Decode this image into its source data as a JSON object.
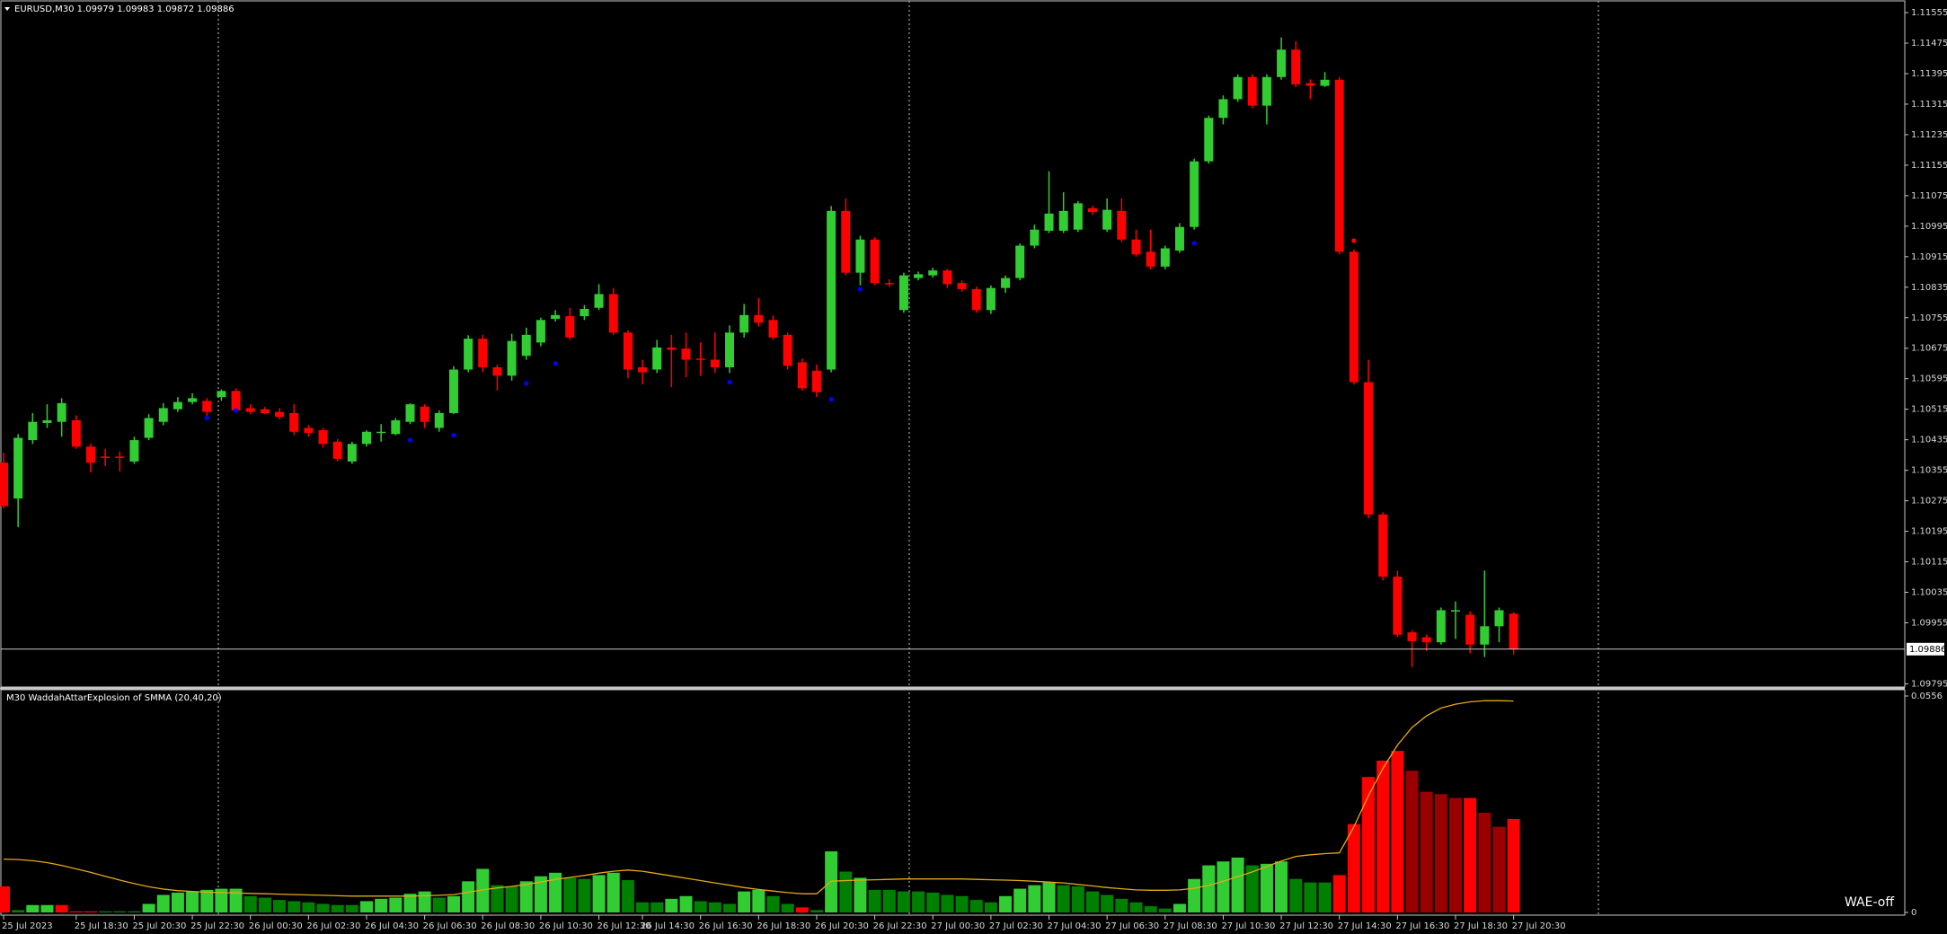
{
  "chart_data": [
    {
      "type": "candlestick",
      "title": "EURUSD,M30 1.09979 1.09983 1.09872 1.09886",
      "categories": [
        "25 Jul 2023",
        null,
        null,
        null,
        null,
        "25 Jul 18:30",
        null,
        null,
        null,
        "25 Jul 20:30",
        null,
        null,
        null,
        "25 Jul 22:30",
        null,
        null,
        null,
        "26 Jul 00:30",
        null,
        null,
        null,
        "26 Jul 02:30",
        null,
        null,
        null,
        "26 Jul 04:30",
        null,
        null,
        null,
        "26 Jul 06:30",
        null,
        null,
        null,
        "26 Jul 08:30",
        null,
        null,
        null,
        "26 Jul 10:30",
        null,
        null,
        null,
        "26 Jul 12:30",
        null,
        null,
        "26 Jul 14:30",
        null,
        null,
        null,
        "26 Jul 16:30",
        null,
        null,
        null,
        "26 Jul 18:30",
        null,
        null,
        null,
        "26 Jul 20:30",
        null,
        null,
        null,
        "26 Jul 22:30",
        null,
        null,
        null,
        "27 Jul 00:30",
        null,
        null,
        null,
        "27 Jul 02:30",
        null,
        null,
        null,
        "27 Jul 04:30",
        null,
        null,
        null,
        "27 Jul 06:30",
        null,
        null,
        null,
        "27 Jul 08:30",
        null,
        null,
        null,
        "27 Jul 10:30",
        null,
        null,
        null,
        "27 Jul 12:30",
        null,
        null,
        null,
        "27 Jul 14:30",
        null,
        null,
        null,
        "27 Jul 16:30",
        null,
        null,
        null,
        "27 Jul 18:30",
        null,
        null,
        null,
        "27 Jul 20:30"
      ],
      "open": [
        1.10375,
        1.10281,
        1.10434,
        1.10479,
        1.10482,
        1.10486,
        1.10417,
        1.10391,
        1.10391,
        1.10378,
        1.1044,
        1.10482,
        1.10515,
        1.10534,
        1.10537,
        1.10547,
        1.10563,
        1.10518,
        1.10515,
        1.10508,
        1.10505,
        1.10466,
        1.1046,
        1.1043,
        1.10378,
        1.10424,
        1.10453,
        1.1045,
        1.10482,
        1.10522,
        1.10466,
        1.10505,
        1.10619,
        1.107,
        1.10625,
        1.10603,
        1.10655,
        1.1069,
        1.10752,
        1.10759,
        1.10759,
        1.10781,
        1.10817,
        1.10716,
        1.10625,
        1.10619,
        1.10677,
        1.10674,
        1.10648,
        1.10645,
        1.10625,
        1.10716,
        1.10762,
        1.10749,
        1.1071,
        1.10638,
        1.10616,
        1.10619,
        1.11035,
        1.10873,
        1.1096,
        1.10846,
        1.10775,
        1.10859,
        1.10866,
        1.10879,
        1.10846,
        1.1083,
        1.10775,
        1.10833,
        1.10859,
        1.10944,
        1.10983,
        1.10983,
        1.10986,
        1.11042,
        1.10986,
        1.11035,
        1.1096,
        1.10928,
        1.10889,
        1.10931,
        1.10993,
        1.11165,
        1.11279,
        1.11328,
        1.11386,
        1.11311,
        1.11386,
        1.11458,
        1.1137,
        1.11363,
        1.11379,
        1.10928,
        1.10586,
        1.10239,
        1.10076,
        1.0993,
        1.09917,
        1.09904,
        1.09985,
        1.09976,
        1.09898,
        1.09946,
        1.09979
      ],
      "high": [
        1.10401,
        1.1045,
        1.10505,
        1.10528,
        1.10544,
        1.10499,
        1.10424,
        1.10411,
        1.10404,
        1.10443,
        1.10502,
        1.10531,
        1.10547,
        1.10557,
        1.10544,
        1.10567,
        1.1057,
        1.10528,
        1.10521,
        1.10518,
        1.10528,
        1.10473,
        1.10466,
        1.10437,
        1.1043,
        1.1046,
        1.10476,
        1.10492,
        1.10531,
        1.10528,
        1.10512,
        1.10628,
        1.10709,
        1.1071,
        1.10632,
        1.10713,
        1.10729,
        1.10755,
        1.10775,
        1.10781,
        1.10788,
        1.10843,
        1.10833,
        1.10722,
        1.10645,
        1.10697,
        1.1071,
        1.10716,
        1.1069,
        1.10716,
        1.10735,
        1.10791,
        1.10807,
        1.10762,
        1.10716,
        1.10648,
        1.10632,
        1.11048,
        1.11068,
        1.1097,
        1.10966,
        1.10856,
        1.10873,
        1.10876,
        1.10886,
        1.10883,
        1.10853,
        1.10836,
        1.1084,
        1.10866,
        1.1095,
        1.10999,
        1.11139,
        1.11084,
        1.11061,
        1.11048,
        1.11068,
        1.11068,
        1.10986,
        1.10986,
        1.10944,
        1.11003,
        1.11172,
        1.11285,
        1.11338,
        1.11393,
        1.11393,
        1.11393,
        1.1149,
        1.1148,
        1.1138,
        1.11399,
        1.11386,
        1.10934,
        1.10645,
        1.10245,
        1.10092,
        1.09936,
        1.09924,
        1.09995,
        1.10011,
        1.09985,
        1.10092,
        1.09995,
        1.09983
      ],
      "low": [
        1.10255,
        1.10206,
        1.10424,
        1.10466,
        1.10443,
        1.10411,
        1.10349,
        1.10366,
        1.10352,
        1.10372,
        1.10434,
        1.10473,
        1.10508,
        1.10528,
        1.10498,
        1.10537,
        1.10508,
        1.10502,
        1.10502,
        1.10489,
        1.10447,
        1.10443,
        1.10414,
        1.10378,
        1.10372,
        1.10417,
        1.1043,
        1.10447,
        1.10476,
        1.10466,
        1.10456,
        1.10502,
        1.10612,
        1.10612,
        1.10564,
        1.1059,
        1.10645,
        1.1068,
        1.10745,
        1.10697,
        1.10749,
        1.10775,
        1.1071,
        1.10596,
        1.1058,
        1.1061,
        1.10573,
        1.10599,
        1.10603,
        1.1061,
        1.1061,
        1.10703,
        1.10732,
        1.10697,
        1.10619,
        1.10564,
        1.10547,
        1.10612,
        1.10866,
        1.1084,
        1.1084,
        1.10836,
        1.10768,
        1.10853,
        1.1086,
        1.10833,
        1.10823,
        1.10768,
        1.10765,
        1.1082,
        1.10853,
        1.10937,
        1.10977,
        1.10977,
        1.1098,
        1.11025,
        1.1098,
        1.10953,
        1.10915,
        1.10882,
        1.10882,
        1.10925,
        1.10986,
        1.11159,
        1.11262,
        1.11321,
        1.11305,
        1.11262,
        1.11379,
        1.1136,
        1.11328,
        1.1136,
        1.10921,
        1.1058,
        1.10229,
        1.10066,
        1.09918,
        1.09839,
        1.09881,
        1.09898,
        1.09913,
        1.09875,
        1.09865,
        1.09904,
        1.09872
      ],
      "close": [
        1.10261,
        1.1044,
        1.10482,
        1.10486,
        1.10531,
        1.10417,
        1.10375,
        1.10388,
        1.10388,
        1.10434,
        1.10492,
        1.10518,
        1.10534,
        1.10544,
        1.10508,
        1.10563,
        1.10512,
        1.10508,
        1.10505,
        1.10495,
        1.10456,
        1.10453,
        1.10424,
        1.10385,
        1.10424,
        1.10456,
        1.10456,
        1.10486,
        1.10528,
        1.10482,
        1.10505,
        1.10619,
        1.107,
        1.10625,
        1.10603,
        1.10694,
        1.1071,
        1.10749,
        1.10762,
        1.10703,
        1.10778,
        1.10817,
        1.10716,
        1.10619,
        1.10612,
        1.10677,
        1.10671,
        1.10645,
        1.10645,
        1.10625,
        1.10716,
        1.10762,
        1.10742,
        1.10703,
        1.10629,
        1.1057,
        1.1056,
        1.11035,
        1.10873,
        1.1096,
        1.10846,
        1.10843,
        1.10866,
        1.10869,
        1.10879,
        1.10843,
        1.1083,
        1.10775,
        1.10833,
        1.10859,
        1.10944,
        1.10986,
        1.11028,
        1.11035,
        1.11055,
        1.11032,
        1.11038,
        1.1096,
        1.10921,
        1.10889,
        1.10937,
        1.10993,
        1.11165,
        1.11279,
        1.11328,
        1.11386,
        1.11311,
        1.11386,
        1.11458,
        1.11367,
        1.11363,
        1.11379,
        1.10928,
        1.10586,
        1.10239,
        1.10076,
        1.09924,
        1.09907,
        1.09904,
        1.09988,
        1.09988,
        1.09898,
        1.09946,
        1.09988,
        1.09886
      ],
      "up_color": "#32cd32",
      "down_color": "#ff0000",
      "ylim": [
        1.09789,
        1.11581
      ],
      "yticks": [
        1.11555,
        1.11475,
        1.11395,
        1.11315,
        1.11235,
        1.11155,
        1.11075,
        1.10995,
        1.10915,
        1.10835,
        1.10755,
        1.10675,
        1.10595,
        1.10515,
        1.10435,
        1.10355,
        1.10275,
        1.10195,
        1.10115,
        1.10035,
        1.09955,
        1.09795
      ],
      "last_price": 1.09886,
      "signals": [
        {
          "index": 14,
          "value": 1.10492,
          "color": "#0000ff"
        },
        {
          "index": 16,
          "value": 1.10512,
          "color": "#0000ff"
        },
        {
          "index": 28,
          "value": 1.10434,
          "color": "#0000ff"
        },
        {
          "index": 31,
          "value": 1.10447,
          "color": "#0000ff"
        },
        {
          "index": 36,
          "value": 1.10583,
          "color": "#0000ff"
        },
        {
          "index": 38,
          "value": 1.10635,
          "color": "#0000ff"
        },
        {
          "index": 50,
          "value": 1.10586,
          "color": "#0000ff"
        },
        {
          "index": 57,
          "value": 1.10541,
          "color": "#0000ff"
        },
        {
          "index": 59,
          "value": 1.1083,
          "color": "#0000ff"
        },
        {
          "index": 82,
          "value": 1.1095,
          "color": "#0000ff"
        },
        {
          "index": 93,
          "value": 1.10957,
          "color": "#ff0000"
        }
      ],
      "grid": false
    },
    {
      "type": "bar",
      "title": "M30 WaddahAttarExplosion of SMMA (20,40,20)",
      "values": [
        0.0067,
        0.0006,
        0.0019,
        0.0019,
        0.0019,
        0.0003,
        0.0003,
        0.0003,
        0.0003,
        0.0003,
        0.0022,
        0.0045,
        0.0051,
        0.0054,
        0.0058,
        0.0061,
        0.0061,
        0.0042,
        0.0038,
        0.0032,
        0.0029,
        0.0026,
        0.0022,
        0.0019,
        0.0019,
        0.0029,
        0.0035,
        0.0038,
        0.0048,
        0.0054,
        0.0038,
        0.0042,
        0.008,
        0.0112,
        0.007,
        0.0067,
        0.008,
        0.0093,
        0.0102,
        0.0089,
        0.0086,
        0.0096,
        0.0102,
        0.0083,
        0.0026,
        0.0026,
        0.0035,
        0.0042,
        0.0029,
        0.0026,
        0.0022,
        0.0054,
        0.0058,
        0.0042,
        0.0022,
        0.0013,
        0.0006,
        0.0157,
        0.0105,
        0.0089,
        0.0058,
        0.0058,
        0.0054,
        0.0054,
        0.0051,
        0.0045,
        0.0042,
        0.0032,
        0.0026,
        0.0042,
        0.0061,
        0.007,
        0.0077,
        0.007,
        0.0067,
        0.0054,
        0.0045,
        0.0035,
        0.0026,
        0.0016,
        0.001,
        0.0022,
        0.0086,
        0.0121,
        0.0131,
        0.0141,
        0.0121,
        0.0125,
        0.0131,
        0.0086,
        0.0077,
        0.0077,
        0.0096,
        0.0227,
        0.0348,
        0.039,
        0.0415,
        0.0364,
        0.031,
        0.0304,
        0.0294,
        0.0294,
        0.0256,
        0.022,
        0.024
      ],
      "colors": [
        "#ff0000",
        "#008000",
        "#32cd32",
        "#32cd32",
        "#ff0000",
        "#ff0000",
        "#ff0000",
        "#008000",
        "#008000",
        "#008000",
        "#32cd32",
        "#32cd32",
        "#32cd32",
        "#32cd32",
        "#32cd32",
        "#32cd32",
        "#32cd32",
        "#008000",
        "#008000",
        "#008000",
        "#008000",
        "#008000",
        "#008000",
        "#008000",
        "#008000",
        "#32cd32",
        "#32cd32",
        "#32cd32",
        "#32cd32",
        "#32cd32",
        "#008000",
        "#32cd32",
        "#32cd32",
        "#32cd32",
        "#008000",
        "#008000",
        "#32cd32",
        "#32cd32",
        "#32cd32",
        "#008000",
        "#008000",
        "#32cd32",
        "#32cd32",
        "#008000",
        "#008000",
        "#008000",
        "#32cd32",
        "#32cd32",
        "#008000",
        "#008000",
        "#008000",
        "#32cd32",
        "#32cd32",
        "#008000",
        "#008000",
        "#ff0000",
        "#008000",
        "#32cd32",
        "#008000",
        "#32cd32",
        "#008000",
        "#008000",
        "#008000",
        "#008000",
        "#008000",
        "#008000",
        "#008000",
        "#008000",
        "#008000",
        "#32cd32",
        "#32cd32",
        "#32cd32",
        "#32cd32",
        "#008000",
        "#008000",
        "#008000",
        "#008000",
        "#008000",
        "#008000",
        "#008000",
        "#008000",
        "#32cd32",
        "#32cd32",
        "#32cd32",
        "#32cd32",
        "#32cd32",
        "#008000",
        "#32cd32",
        "#32cd32",
        "#008000",
        "#008000",
        "#008000",
        "#ff0000",
        "#ff0000",
        "#ff0000",
        "#ff0000",
        "#ff0000",
        "#9b0000",
        "#9b0000",
        "#9b0000",
        "#9b0000",
        "#ff0000",
        "#9b0000",
        "#9b0000",
        "#ff0000"
      ],
      "line": {
        "color": "#e6a817",
        "values": [
          0.0137,
          0.0136,
          0.0133,
          0.0128,
          0.0121,
          0.0112,
          0.0103,
          0.0093,
          0.0083,
          0.0074,
          0.0066,
          0.006,
          0.0056,
          0.0054,
          0.0052,
          0.0051,
          0.005,
          0.0049,
          0.0048,
          0.0047,
          0.0046,
          0.0045,
          0.0044,
          0.0043,
          0.0042,
          0.0042,
          0.0042,
          0.0042,
          0.0042,
          0.0043,
          0.0044,
          0.0046,
          0.0052,
          0.0058,
          0.0063,
          0.0067,
          0.0072,
          0.0078,
          0.0085,
          0.009,
          0.0095,
          0.0101,
          0.0106,
          0.0109,
          0.0106,
          0.01,
          0.0094,
          0.0088,
          0.0082,
          0.0076,
          0.007,
          0.0064,
          0.0059,
          0.0055,
          0.0051,
          0.0048,
          0.0048,
          0.008,
          0.0082,
          0.0083,
          0.0084,
          0.0085,
          0.0086,
          0.0086,
          0.0086,
          0.0086,
          0.0086,
          0.0085,
          0.0084,
          0.0083,
          0.0082,
          0.008,
          0.0078,
          0.0076,
          0.0072,
          0.0068,
          0.0064,
          0.0061,
          0.0058,
          0.0057,
          0.0057,
          0.0058,
          0.0062,
          0.007,
          0.008,
          0.0092,
          0.0104,
          0.0118,
          0.0132,
          0.0144,
          0.0148,
          0.0151,
          0.0153,
          0.022,
          0.03,
          0.037,
          0.043,
          0.0475,
          0.0505,
          0.0525,
          0.0535,
          0.0541,
          0.0544,
          0.0544,
          0.0543
        ]
      },
      "ylim": [
        0,
        0.0556
      ],
      "yticks": [
        0.0556,
        0
      ],
      "status": "WAE-off"
    }
  ]
}
